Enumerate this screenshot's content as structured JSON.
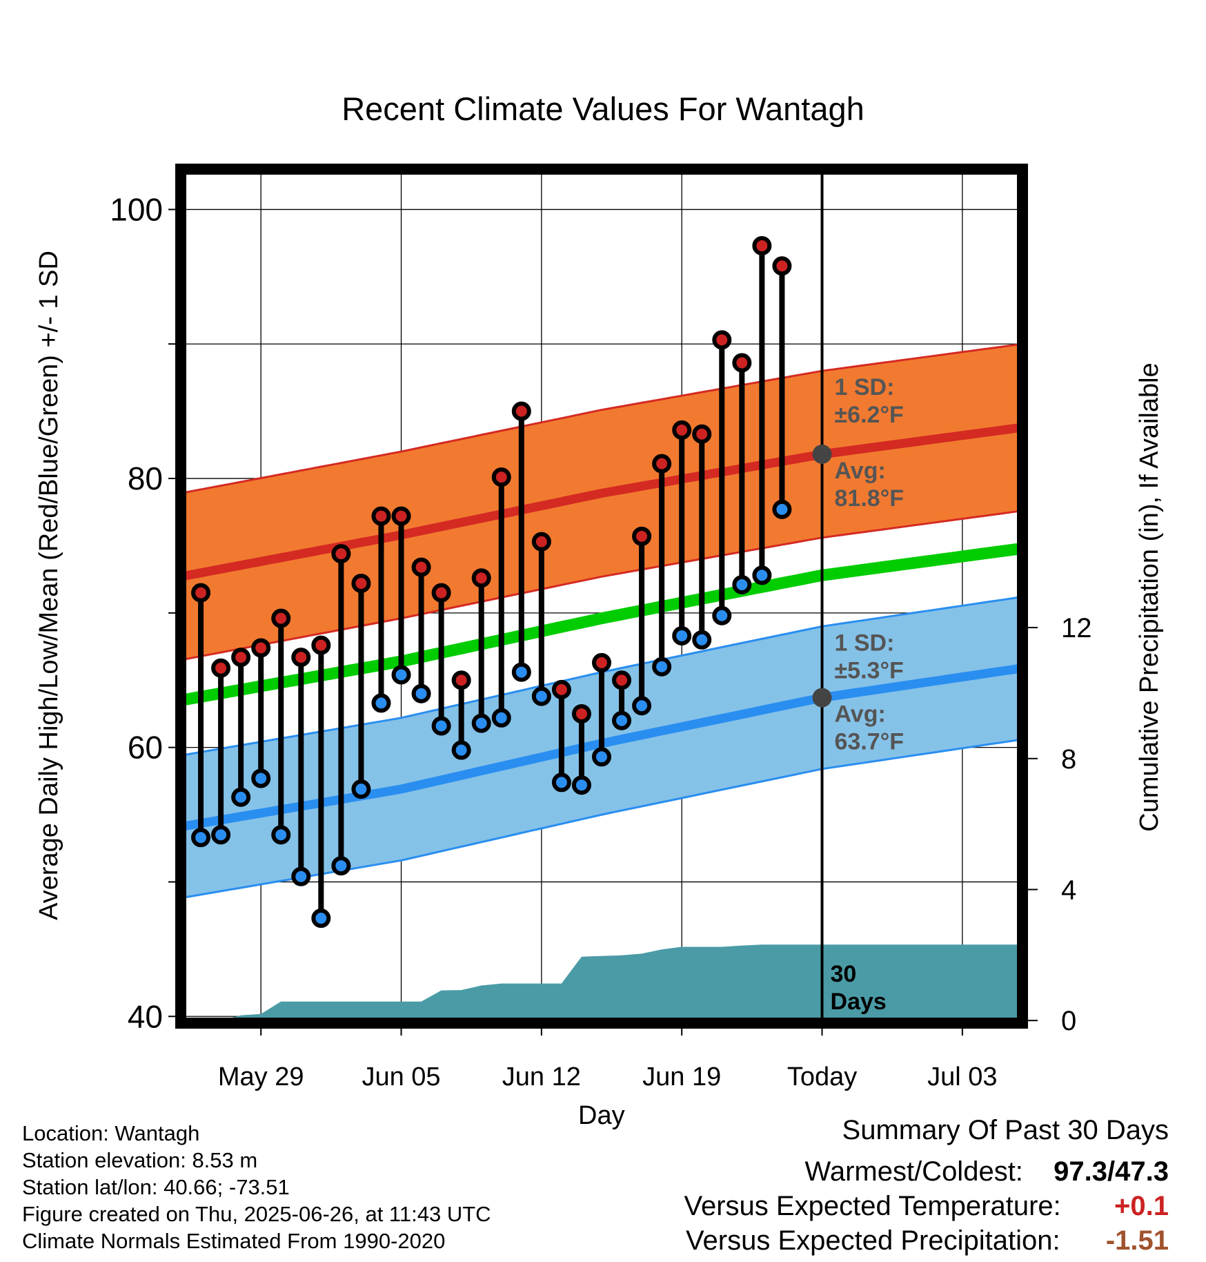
{
  "colors": {
    "high_band": "#f27a30",
    "high_band_edge": "#d42a22",
    "high_avg_line": "#d42a22",
    "low_band": "#85c2e8",
    "low_band_edge": "#2a8ef0",
    "low_avg_line": "#2a8ef0",
    "mean_line": "#00cc00",
    "precip_fill": "#4a9ba6",
    "high_marker": "#cc2222",
    "low_marker": "#2a8ef0",
    "avg_dot": "#444444",
    "sd_text": "#555555",
    "temp_anomaly": "#cc2222",
    "precip_anomaly": "#a0522d"
  },
  "chart_data": {
    "type": "line",
    "title": "Recent Climate Values For Wantagh",
    "xlabel": "Day",
    "ylabel": "Average Daily High/Low/Mean (Red/Blue/Green) +/- 1 SD",
    "y2label": "Cumulative Precipitation (in), If Available",
    "ylim": [
      39.5,
      103
    ],
    "y2lim": [
      -0.08,
      26
    ],
    "yticks": [
      "40",
      "60",
      "80",
      "100"
    ],
    "y2ticks": [
      "0",
      "4",
      "8",
      "12"
    ],
    "xlim": [
      "2025-05-25",
      "2025-07-06"
    ],
    "xticks": [
      "May 29",
      "Jun 05",
      "Jun 12",
      "Jun 19",
      "Today",
      "Jul 03"
    ],
    "xtick_dates": [
      "2025-05-29",
      "2025-06-05",
      "2025-06-12",
      "2025-06-19",
      "2025-06-26",
      "2025-07-03"
    ],
    "grid": true,
    "today_date": "2025-06-26",
    "daily": {
      "dates": [
        "2025-05-26",
        "2025-05-27",
        "2025-05-28",
        "2025-05-29",
        "2025-05-30",
        "2025-05-31",
        "2025-06-01",
        "2025-06-02",
        "2025-06-03",
        "2025-06-04",
        "2025-06-05",
        "2025-06-06",
        "2025-06-07",
        "2025-06-08",
        "2025-06-09",
        "2025-06-10",
        "2025-06-11",
        "2025-06-12",
        "2025-06-13",
        "2025-06-14",
        "2025-06-15",
        "2025-06-16",
        "2025-06-17",
        "2025-06-18",
        "2025-06-19",
        "2025-06-20",
        "2025-06-21",
        "2025-06-22",
        "2025-06-23",
        "2025-06-24",
        "2025-06-25"
      ],
      "high": [
        71.5,
        65.9,
        66.7,
        67.4,
        69.6,
        66.7,
        67.6,
        74.4,
        72.2,
        77.2,
        77.2,
        73.4,
        71.5,
        65.0,
        72.6,
        80.1,
        85.0,
        75.3,
        64.3,
        62.5,
        66.3,
        65.0,
        75.7,
        81.1,
        83.6,
        83.3,
        90.3,
        88.6,
        97.3,
        95.8,
        null
      ],
      "low": [
        53.3,
        53.5,
        56.3,
        57.7,
        53.5,
        50.4,
        47.3,
        51.2,
        56.9,
        63.3,
        65.4,
        64.0,
        61.6,
        59.8,
        61.8,
        62.2,
        65.6,
        63.8,
        57.4,
        57.2,
        59.3,
        62.0,
        63.1,
        66.0,
        68.3,
        68.0,
        69.8,
        72.1,
        72.8,
        77.7,
        null
      ]
    },
    "normals": {
      "dates": [
        "2025-05-25",
        "2025-06-05",
        "2025-06-15",
        "2025-06-26",
        "2025-07-06"
      ],
      "high_avg": [
        72.7,
        75.8,
        78.9,
        81.8,
        83.8
      ],
      "high_sd": 6.2,
      "low_avg": [
        54.1,
        56.9,
        60.3,
        63.7,
        65.9
      ],
      "low_sd": 5.3,
      "mean_avg": [
        63.5,
        66.4,
        69.6,
        72.8,
        74.8
      ]
    },
    "precip": {
      "dates": [
        "2025-05-26",
        "2025-05-27",
        "2025-05-28",
        "2025-05-29",
        "2025-05-30",
        "2025-05-31",
        "2025-06-01",
        "2025-06-02",
        "2025-06-03",
        "2025-06-04",
        "2025-06-05",
        "2025-06-06",
        "2025-06-07",
        "2025-06-08",
        "2025-06-09",
        "2025-06-10",
        "2025-06-11",
        "2025-06-12",
        "2025-06-13",
        "2025-06-14",
        "2025-06-15",
        "2025-06-16",
        "2025-06-17",
        "2025-06-18",
        "2025-06-19",
        "2025-06-20",
        "2025-06-21",
        "2025-06-22",
        "2025-06-23",
        "2025-06-24",
        "2025-06-25",
        "2025-06-26"
      ],
      "cumulative": [
        0.0,
        0.0,
        0.16,
        0.2,
        0.58,
        0.58,
        0.58,
        0.58,
        0.58,
        0.58,
        0.58,
        0.58,
        0.92,
        0.93,
        1.07,
        1.13,
        1.13,
        1.13,
        1.13,
        1.95,
        1.97,
        1.99,
        2.04,
        2.17,
        2.25,
        2.25,
        2.25,
        2.29,
        2.32,
        2.32,
        2.32,
        2.32
      ],
      "extend_to": "2025-07-06"
    },
    "annotations": {
      "high_sd_line1": "1 SD:",
      "high_sd_line2": "±6.2°F",
      "high_avg_line1": "Avg:",
      "high_avg_line2": "81.8°F",
      "low_sd_line1": "1 SD:",
      "low_sd_line2": "±5.3°F",
      "low_avg_line1": "Avg:",
      "low_avg_line2": "63.7°F",
      "days_line1": "30",
      "days_line2": "Days"
    }
  },
  "info": {
    "location": "Location: Wantagh",
    "elevation": "Station elevation: 8.53 m",
    "latlon": "Station lat/lon: 40.66; -73.51",
    "created": "Figure created on Thu, 2025-06-26, at 11:43 UTC",
    "normals": "Climate Normals Estimated From 1990-2020"
  },
  "summary": {
    "title": "Summary Of Past 30 Days",
    "warmest_coldest_label": "Warmest/Coldest:",
    "warmest_coldest_value": "97.3/47.3",
    "temp_label": "Versus Expected Temperature:",
    "temp_value": "+0.1",
    "precip_label": "Versus Expected Precipitation:",
    "precip_value": "-1.51"
  }
}
